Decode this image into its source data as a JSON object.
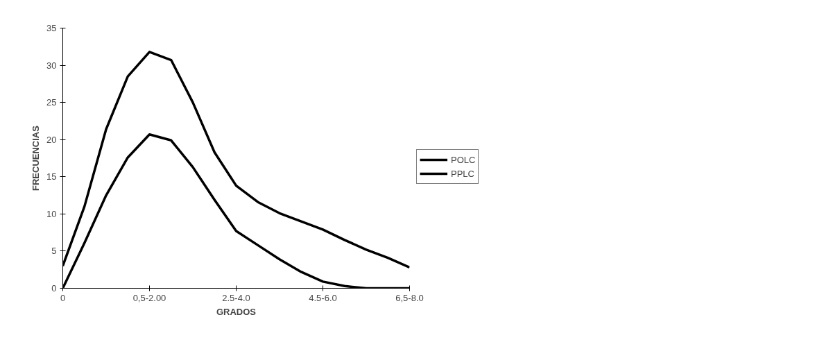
{
  "chart_data": {
    "type": "line",
    "xlabel": "GRADOS",
    "ylabel": "FRECUENCIAS",
    "categories": [
      "0",
      null,
      null,
      null,
      "0,5-2.00",
      null,
      null,
      null,
      "2.5-4.0",
      null,
      null,
      null,
      "4.5-6.0",
      null,
      null,
      null,
      "6,5-8.0"
    ],
    "series": [
      {
        "name": "POLC",
        "color": "#000000",
        "values": [
          3,
          11,
          21.4,
          28.5,
          31.8,
          30.7,
          25,
          18.3,
          13.8,
          11.6,
          10.1,
          9,
          7.9,
          6.5,
          5.2,
          4.1,
          2.8
        ]
      },
      {
        "name": "PPLC",
        "color": "#000000",
        "values": [
          0,
          6.1,
          12.5,
          17.6,
          20.7,
          19.9,
          16.3,
          11.9,
          7.7,
          5.8,
          3.9,
          2.2,
          0.9,
          0.3,
          0,
          0,
          0
        ]
      }
    ],
    "ylim": [
      0,
      35
    ],
    "yticks": [
      0,
      5,
      10,
      15,
      20,
      25,
      30,
      35
    ],
    "grid": false,
    "legend": "right",
    "marker": "none",
    "line_style": "solid"
  }
}
